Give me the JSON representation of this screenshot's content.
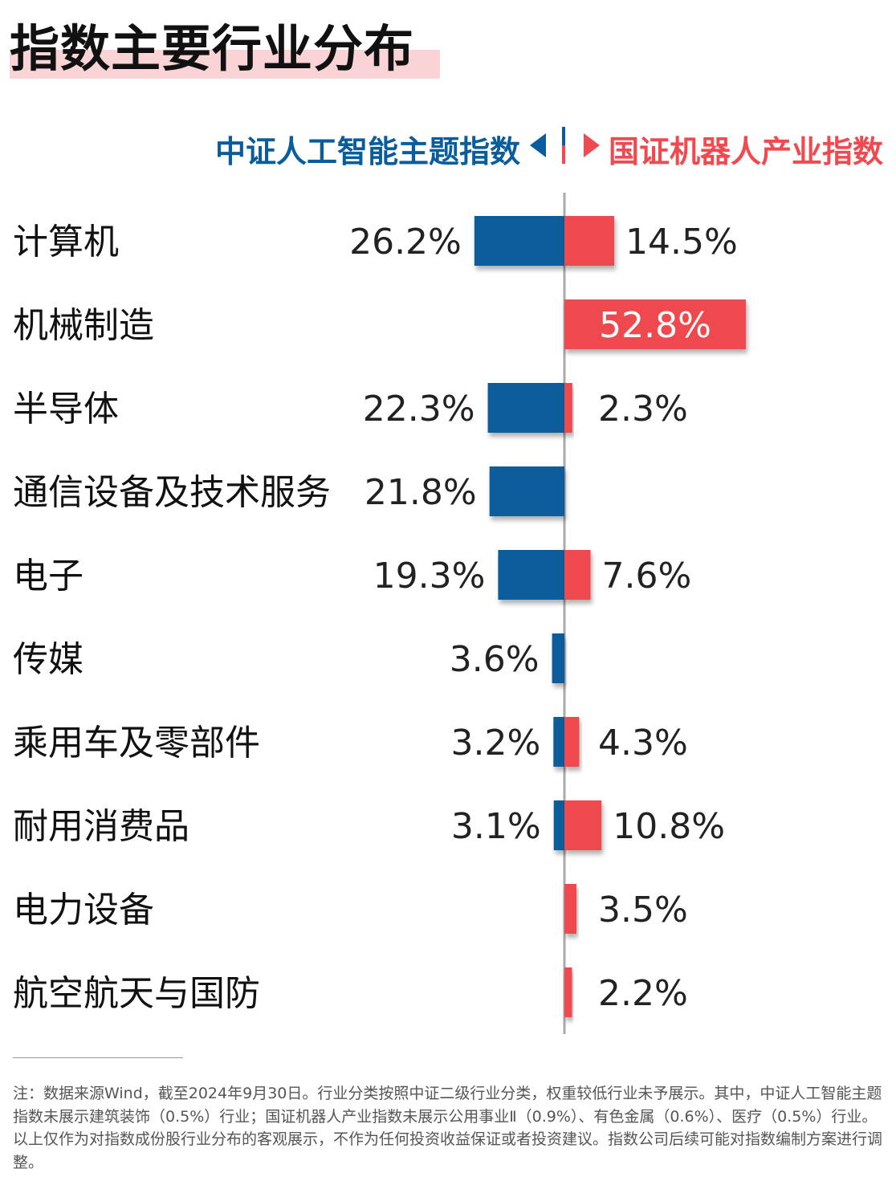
{
  "header": {
    "title": "指数主要行业分布"
  },
  "chart_data": {
    "type": "bar",
    "orientation": "horizontal-diverging",
    "title": "指数主要行业分布",
    "categories": [
      "计算机",
      "机械制造",
      "半导体",
      "通信设备及技术服务",
      "电子",
      "传媒",
      "乘用车及零部件",
      "耐用消费品",
      "电力设备",
      "航空航天与国防"
    ],
    "series": [
      {
        "name": "中证人工智能主题指数",
        "side": "left",
        "color": "#0a5d9c",
        "values": [
          26.2,
          null,
          22.3,
          21.8,
          19.3,
          3.6,
          3.2,
          3.1,
          null,
          null
        ],
        "labels": [
          "26.2%",
          "",
          "22.3%",
          "21.8%",
          "19.3%",
          "3.6%",
          "3.2%",
          "3.1%",
          "",
          ""
        ]
      },
      {
        "name": "国证机器人产业指数",
        "side": "right",
        "color": "#ee4a4f",
        "values": [
          14.5,
          52.8,
          2.3,
          null,
          7.6,
          null,
          4.3,
          10.8,
          3.5,
          2.2
        ],
        "labels": [
          "14.5%",
          "52.8%",
          "2.3%",
          "",
          "7.6%",
          "",
          "4.3%",
          "10.8%",
          "3.5%",
          "2.2%"
        ]
      }
    ],
    "unit": "%"
  },
  "footnote": "注：数据来源Wind，截至2024年9月30日。行业分类按照中证二级行业分类，权重较低行业未予展示。其中，中证人工智能主题指数未展示建筑装饰（0.5%）行业；国证机器人产业指数未展示公用事业Ⅱ（0.9%）、有色金属（0.6%）、医疗（0.5%）行业。以上仅作为对指数成份股行业分布的客观展示，不作为任何投资收益保证或者投资建议。指数公司后续可能对指数编制方案进行调整。"
}
